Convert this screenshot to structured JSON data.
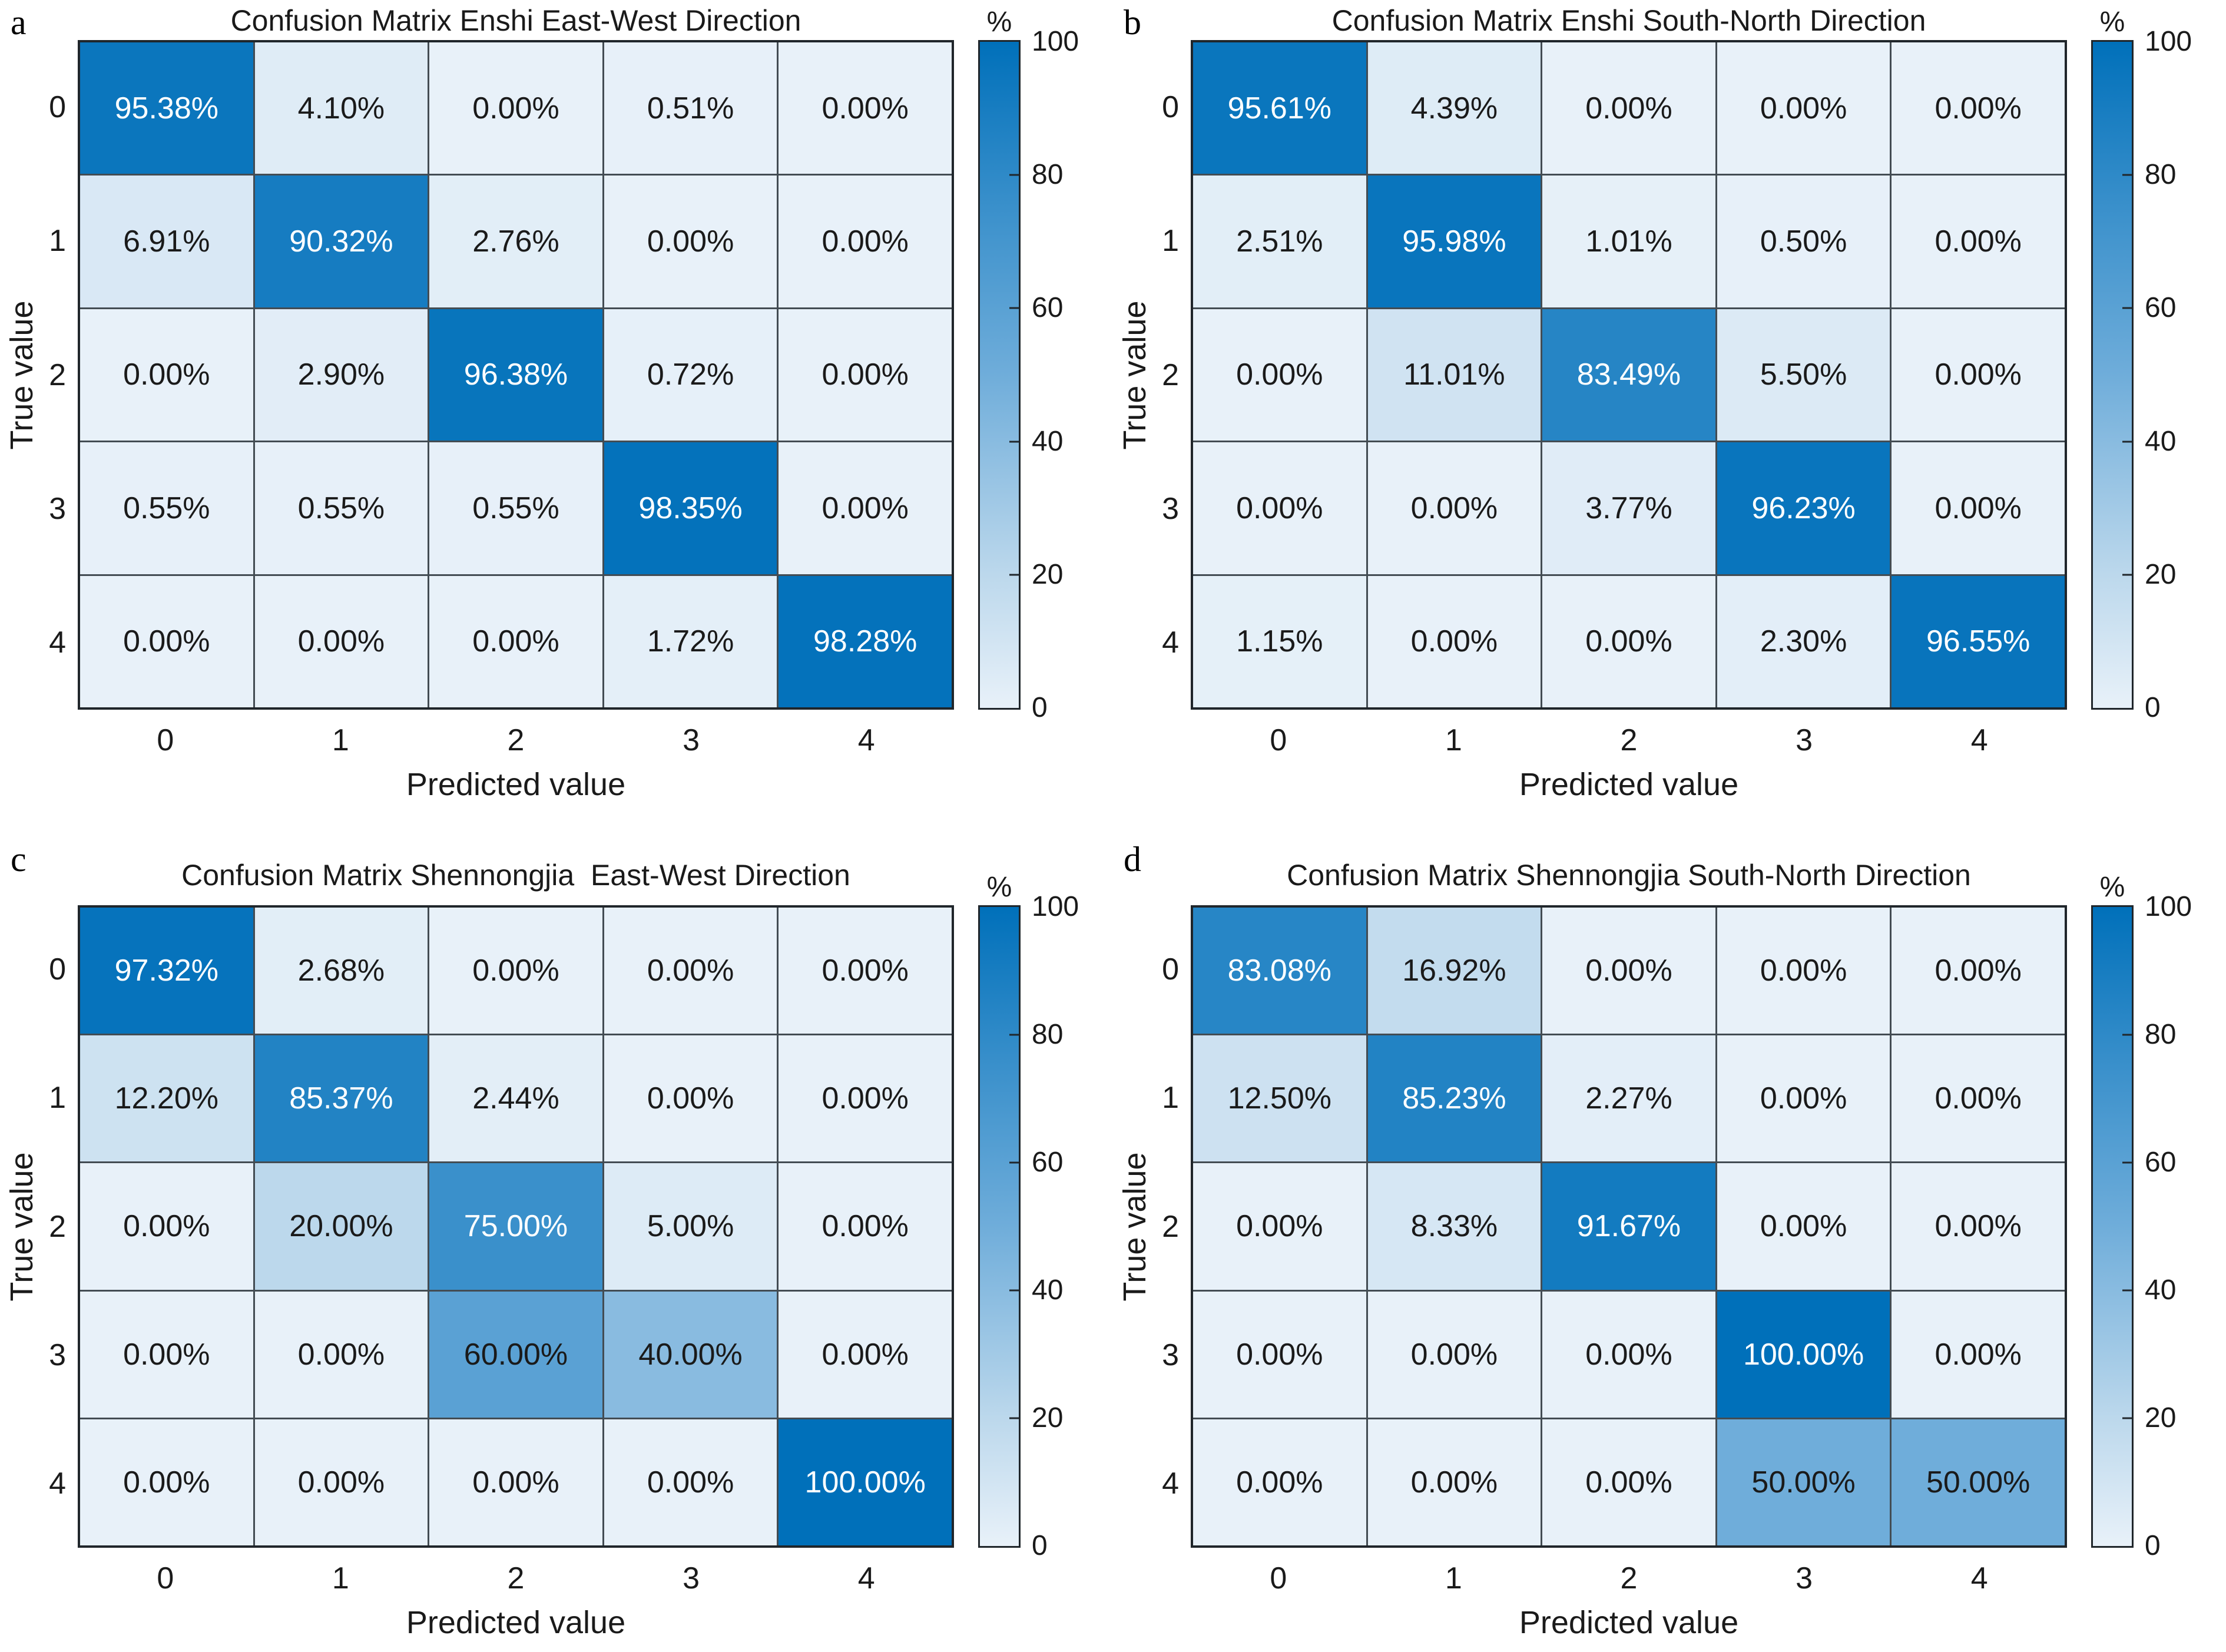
{
  "figure": {
    "background": "#ffffff"
  },
  "style": {
    "cmap_stops": [
      [
        0,
        "#e8f1f9"
      ],
      [
        20,
        "#bcd8ec"
      ],
      [
        50,
        "#6fadda"
      ],
      [
        75,
        "#3a90cb"
      ],
      [
        100,
        "#0070ba"
      ]
    ],
    "white_text_threshold": 70,
    "dark_text_color": "#1a1a1a",
    "light_text_color": "#ffffff",
    "grid_line_color": "#434c53",
    "axes_border_color": "#20262b"
  },
  "chart_data": [
    {
      "type": "heatmap",
      "panel_label": "a",
      "title": "Confusion Matrix Enshi East-West Direction",
      "xlabel": "Predicted value",
      "ylabel": "True value",
      "x_ticks": [
        "0",
        "1",
        "2",
        "3",
        "4"
      ],
      "y_ticks": [
        "0",
        "1",
        "2",
        "3",
        "4"
      ],
      "cell_format": "percent_2dp",
      "values_percent": [
        [
          95.38,
          4.1,
          0.0,
          0.51,
          0.0
        ],
        [
          6.91,
          90.32,
          2.76,
          0.0,
          0.0
        ],
        [
          0.0,
          2.9,
          96.38,
          0.72,
          0.0
        ],
        [
          0.55,
          0.55,
          0.55,
          98.35,
          0.0
        ],
        [
          0.0,
          0.0,
          0.0,
          1.72,
          98.28
        ]
      ],
      "colorbar": {
        "label": "%",
        "min": 0,
        "max": 100,
        "ticks": [
          0,
          20,
          40,
          60,
          80,
          100
        ],
        "marked_ticks": [
          20,
          40,
          60,
          80
        ]
      }
    },
    {
      "type": "heatmap",
      "panel_label": "b",
      "title": "Confusion Matrix Enshi South-North Direction",
      "xlabel": "Predicted value",
      "ylabel": "True value",
      "x_ticks": [
        "0",
        "1",
        "2",
        "3",
        "4"
      ],
      "y_ticks": [
        "0",
        "1",
        "2",
        "3",
        "4"
      ],
      "cell_format": "percent_2dp",
      "values_percent": [
        [
          95.61,
          4.39,
          0.0,
          0.0,
          0.0
        ],
        [
          2.51,
          95.98,
          1.01,
          0.5,
          0.0
        ],
        [
          0.0,
          11.01,
          83.49,
          5.5,
          0.0
        ],
        [
          0.0,
          0.0,
          3.77,
          96.23,
          0.0
        ],
        [
          1.15,
          0.0,
          0.0,
          2.3,
          96.55
        ]
      ],
      "colorbar": {
        "label": "%",
        "min": 0,
        "max": 100,
        "ticks": [
          0,
          20,
          40,
          60,
          80,
          100
        ],
        "marked_ticks": [
          20,
          40,
          60,
          80
        ]
      }
    },
    {
      "type": "heatmap",
      "panel_label": "c",
      "title": "Confusion Matrix Shennongjia  East-West Direction",
      "xlabel": "Predicted value",
      "ylabel": "True value",
      "x_ticks": [
        "0",
        "1",
        "2",
        "3",
        "4"
      ],
      "y_ticks": [
        "0",
        "1",
        "2",
        "3",
        "4"
      ],
      "cell_format": "percent_2dp",
      "values_percent": [
        [
          97.32,
          2.68,
          0.0,
          0.0,
          0.0
        ],
        [
          12.2,
          85.37,
          2.44,
          0.0,
          0.0
        ],
        [
          0.0,
          20.0,
          75.0,
          5.0,
          0.0
        ],
        [
          0.0,
          0.0,
          60.0,
          40.0,
          0.0
        ],
        [
          0.0,
          0.0,
          0.0,
          0.0,
          100.0
        ]
      ],
      "colorbar": {
        "label": "%",
        "min": 0,
        "max": 100,
        "ticks": [
          0,
          20,
          40,
          60,
          80,
          100
        ],
        "marked_ticks": [
          20,
          40,
          60,
          80
        ]
      }
    },
    {
      "type": "heatmap",
      "panel_label": "d",
      "title": "Confusion Matrix Shennongjia South-North Direction",
      "xlabel": "Predicted value",
      "ylabel": "True value",
      "x_ticks": [
        "0",
        "1",
        "2",
        "3",
        "4"
      ],
      "y_ticks": [
        "0",
        "1",
        "2",
        "3",
        "4"
      ],
      "cell_format": "percent_2dp",
      "values_percent": [
        [
          83.08,
          16.92,
          0.0,
          0.0,
          0.0
        ],
        [
          12.5,
          85.23,
          2.27,
          0.0,
          0.0
        ],
        [
          0.0,
          8.33,
          91.67,
          0.0,
          0.0
        ],
        [
          0.0,
          0.0,
          0.0,
          100.0,
          0.0
        ],
        [
          0.0,
          0.0,
          0.0,
          50.0,
          50.0
        ]
      ],
      "colorbar": {
        "label": "%",
        "min": 0,
        "max": 100,
        "ticks": [
          0,
          20,
          40,
          60,
          80,
          100
        ],
        "marked_ticks": [
          20,
          40,
          60,
          80
        ]
      }
    }
  ]
}
